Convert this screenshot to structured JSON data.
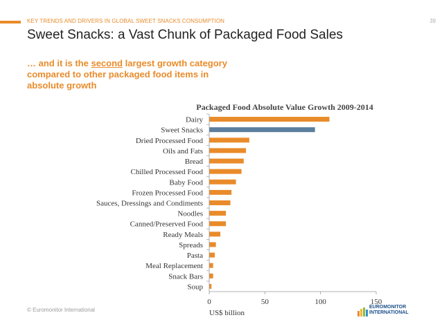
{
  "header": {
    "kicker": "KEY TRENDS AND DRIVERS IN GLOBAL SWEET SNACKS CONSUMPTION",
    "page_number": "39",
    "title": "Sweet Snacks: a Vast Chunk of Packaged Food Sales",
    "subtitle_pre": "… and it is the ",
    "subtitle_emph": "second",
    "subtitle_post": " largest growth category compared to other packaged food items in absolute growth"
  },
  "footer": {
    "copyright": "© Euromonitor International",
    "logo_line1": "EUROMONITOR",
    "logo_line2": "INTERNATIONAL"
  },
  "colors": {
    "accent": "#e98b2a",
    "highlight": "#5b7f9e"
  },
  "chart_data": {
    "type": "bar",
    "orientation": "horizontal",
    "title": "Packaged Food  Absolute Value Growth 2009-2014",
    "xlabel": "US$ billion",
    "ylabel": "",
    "xlim": [
      0,
      150
    ],
    "xticks": [
      0,
      50,
      100,
      150
    ],
    "grid": false,
    "categories": [
      "Dairy",
      "Sweet Snacks",
      "Dried Processed Food",
      "Oils and Fats",
      "Bread",
      "Chilled Processed Food",
      "Baby Food",
      "Frozen Processed Food",
      "Sauces, Dressings and Condiments",
      "Noodles",
      "Canned/Preserved Food",
      "Ready Meals",
      "Spreads",
      "Pasta",
      "Meal Replacement",
      "Snack Bars",
      "Soup"
    ],
    "values": [
      108,
      95,
      36,
      33,
      31,
      29,
      24,
      20,
      19,
      15,
      15,
      10,
      6,
      5,
      3.5,
      3.5,
      2
    ],
    "highlight_category": "Sweet Snacks"
  }
}
